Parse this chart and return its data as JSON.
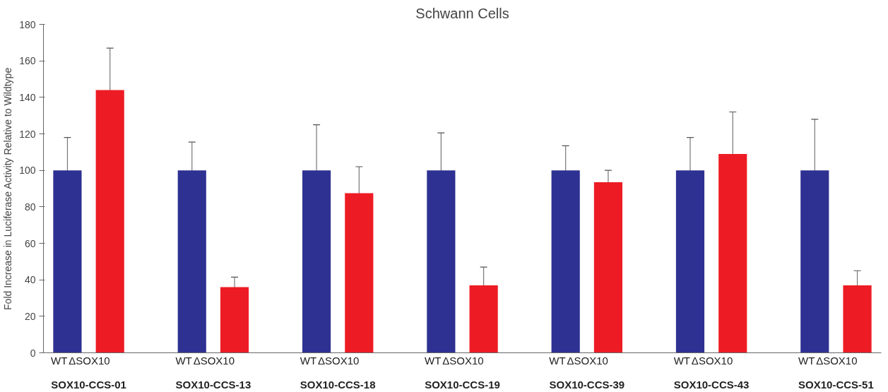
{
  "chart_data": {
    "type": "bar",
    "title": "Schwann Cells",
    "ylabel": "Fold Increase in Luciferase Activity Relative to Wildtype",
    "categories": [
      "SOX10-CCS-01",
      "SOX10-CCS-13",
      "SOX10-CCS-18",
      "SOX10-CCS-19",
      "SOX10-CCS-39",
      "SOX10-CCS-43",
      "SOX10-CCS-51"
    ],
    "series": [
      {
        "name": "WT",
        "color": "#2e3192",
        "values": [
          100,
          100,
          100,
          100,
          100,
          100,
          100
        ],
        "errors": [
          18,
          15.5,
          25,
          20.5,
          13.5,
          18,
          28
        ]
      },
      {
        "name": "ΔSOX10",
        "color": "#ed1c24",
        "values": [
          144,
          36,
          87.5,
          37,
          93.5,
          109,
          37
        ],
        "errors": [
          23,
          5.5,
          14.5,
          10,
          6.5,
          23,
          8
        ]
      }
    ],
    "ylim": [
      0,
      180
    ],
    "yticks": [
      0,
      20,
      40,
      60,
      80,
      100,
      120,
      140,
      160,
      180
    ],
    "grid": false,
    "legend": false
  }
}
